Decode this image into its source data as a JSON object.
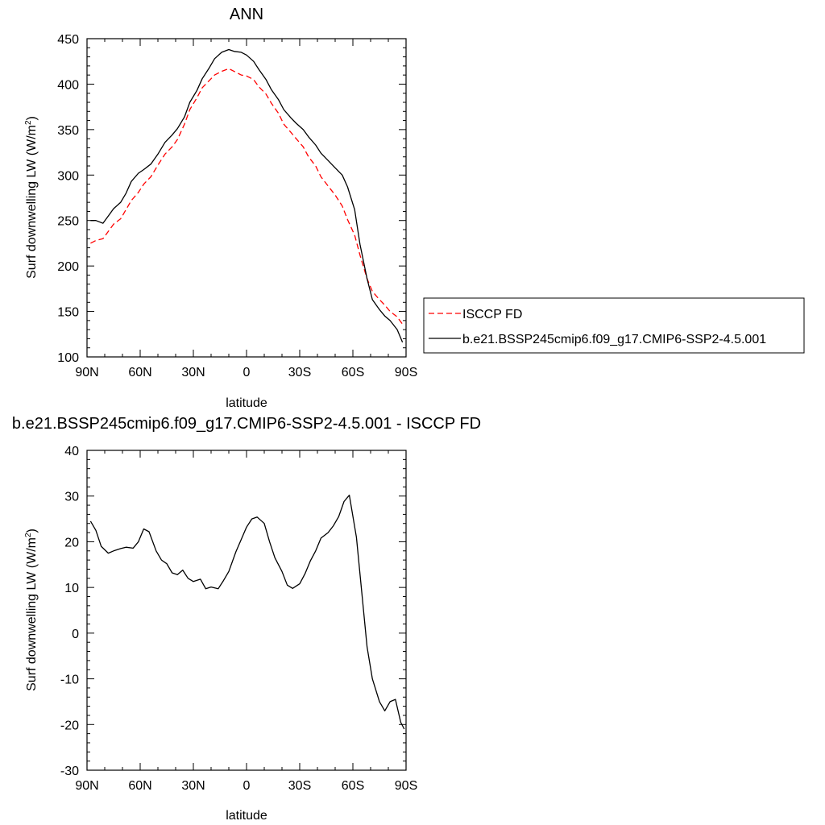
{
  "chart_data": [
    {
      "type": "line",
      "title": "ANN",
      "xlabel": "latitude",
      "ylabel": "Surf downwelling LW (W/m²)",
      "ylabel_main": "Surf downwelling LW (W/m",
      "ylabel_sup": "2",
      "ylabel_tail": ")",
      "xlim": [
        90,
        -90
      ],
      "ylim": [
        100,
        450
      ],
      "xticks": [
        90,
        60,
        30,
        0,
        -30,
        -60,
        -90
      ],
      "xtick_labels": [
        "90N",
        "60N",
        "30N",
        "0",
        "30S",
        "60S",
        "90S"
      ],
      "yticks": [
        100,
        150,
        200,
        250,
        300,
        350,
        400,
        450
      ],
      "ytick_labels": [
        "100",
        "150",
        "200",
        "250",
        "300",
        "350",
        "400",
        "450"
      ],
      "legend_position": "right",
      "series": [
        {
          "name": "ISCCP FD",
          "color": "#ff0000",
          "dashed": true,
          "x": [
            88,
            85,
            81,
            78,
            75,
            71,
            68,
            65,
            61,
            58,
            54,
            50,
            46,
            42,
            39,
            35,
            32,
            28,
            25,
            21,
            18,
            14,
            10,
            7,
            3,
            0,
            -4,
            -7,
            -11,
            -14,
            -18,
            -21,
            -25,
            -28,
            -32,
            -35,
            -39,
            -42,
            -46,
            -50,
            -54,
            -57,
            -61,
            -64,
            -68,
            -71,
            -75,
            -78,
            -81,
            -85,
            -88
          ],
          "values": [
            225,
            228,
            230,
            238,
            246,
            252,
            262,
            272,
            281,
            290,
            298,
            311,
            323,
            331,
            339,
            356,
            372,
            385,
            396,
            404,
            410,
            414,
            417,
            414,
            410,
            409,
            405,
            397,
            389,
            379,
            368,
            356,
            347,
            340,
            331,
            320,
            310,
            298,
            288,
            278,
            266,
            251,
            234,
            212,
            186,
            172,
            163,
            157,
            150,
            144,
            136
          ]
        },
        {
          "name": "b.e21.BSSP245cmip6.f09_g17.CMIP6-SSP2-4.5.001",
          "color": "#000000",
          "dashed": false,
          "x": [
            88,
            85,
            81,
            78,
            75,
            71,
            68,
            65,
            61,
            58,
            54,
            50,
            46,
            42,
            39,
            35,
            32,
            28,
            25,
            21,
            18,
            14,
            10,
            7,
            3,
            0,
            -4,
            -7,
            -11,
            -14,
            -18,
            -21,
            -25,
            -28,
            -32,
            -35,
            -39,
            -42,
            -46,
            -50,
            -54,
            -57,
            -61,
            -64,
            -68,
            -71,
            -75,
            -78,
            -81,
            -85,
            -88
          ],
          "values": [
            250,
            250,
            247,
            255,
            263,
            270,
            280,
            293,
            302,
            306,
            312,
            323,
            336,
            344,
            351,
            364,
            380,
            393,
            406,
            418,
            428,
            435,
            438,
            436,
            435,
            432,
            425,
            416,
            405,
            394,
            383,
            372,
            363,
            357,
            350,
            342,
            333,
            324,
            316,
            308,
            300,
            287,
            262,
            224,
            186,
            163,
            152,
            145,
            140,
            130,
            116
          ]
        }
      ]
    },
    {
      "type": "line",
      "title": "b.e21.BSSP245cmip6.f09_g17.CMIP6-SSP2-4.5.001 - ISCCP FD",
      "xlabel": "latitude",
      "ylabel": "Surf downwelling LW (W/m²)",
      "ylabel_main": "Surf downwelling LW (W/m",
      "ylabel_sup": "2",
      "ylabel_tail": ")",
      "xlim": [
        90,
        -90
      ],
      "ylim": [
        -30,
        40
      ],
      "xticks": [
        90,
        60,
        30,
        0,
        -30,
        -60,
        -90
      ],
      "xtick_labels": [
        "90N",
        "60N",
        "30N",
        "0",
        "30S",
        "60S",
        "90S"
      ],
      "yticks": [
        -30,
        -20,
        -10,
        0,
        10,
        20,
        30,
        40
      ],
      "ytick_labels": [
        "-30",
        "-20",
        "-10",
        "0",
        "10",
        "20",
        "30",
        "40"
      ],
      "series": [
        {
          "color": "#000000",
          "dashed": false,
          "x": [
            88,
            85,
            82,
            78,
            75,
            71,
            68,
            64,
            61,
            58,
            55,
            51,
            48,
            45,
            42,
            39,
            36,
            33,
            30,
            26,
            23,
            20,
            16,
            13,
            10,
            6,
            3,
            0,
            -3,
            -6,
            -10,
            -13,
            -16,
            -20,
            -23,
            -26,
            -30,
            -33,
            -36,
            -39,
            -42,
            -46,
            -49,
            -52,
            -55,
            -58,
            -62,
            -65,
            -68,
            -71,
            -75,
            -78,
            -81,
            -84,
            -87,
            -89
          ],
          "values": [
            24.5,
            22.5,
            19,
            17.5,
            18,
            18.5,
            18.8,
            18.6,
            20,
            22.8,
            22.2,
            18,
            16,
            15.2,
            13.2,
            12.8,
            13.8,
            12,
            11.3,
            11.8,
            9.7,
            10.1,
            9.7,
            11.5,
            13.5,
            17.8,
            20.5,
            23.2,
            25,
            25.4,
            24,
            20,
            16.5,
            13.5,
            10.5,
            9.8,
            10.8,
            13,
            15.8,
            18,
            20.8,
            22,
            23.5,
            25.5,
            28.8,
            30.2,
            21,
            9,
            -3,
            -10,
            -15,
            -17,
            -15,
            -14.5,
            -19.5,
            -21
          ]
        }
      ]
    }
  ]
}
